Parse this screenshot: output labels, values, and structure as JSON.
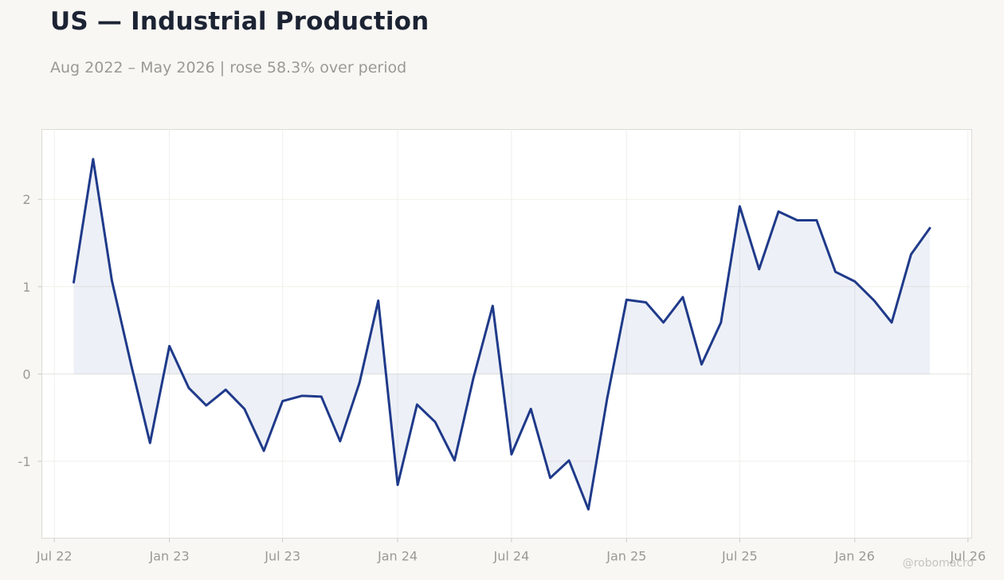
{
  "header": {
    "title": "US — Industrial Production",
    "subtitle": "Aug 2022 – May 2026 | rose 58.3% over period"
  },
  "watermark": "@robomacro",
  "colors": {
    "line": "#1f3a8a",
    "fill": "#1f3a8a",
    "background": "#f8f7f4",
    "plot_background": "#ffffff",
    "grid": "#efefec",
    "tick_text": "#9a9a94",
    "title_text": "#1c2333"
  },
  "chart_data": {
    "type": "area",
    "title": "US — Industrial Production",
    "subtitle": "Aug 2022 – May 2026 | rose 58.3% over period",
    "x_tick_labels": [
      "Jul 22",
      "Jan 23",
      "Jul 23",
      "Jan 24",
      "Jul 24",
      "Jan 25",
      "Jul 25",
      "Jan 26",
      "Jul 26"
    ],
    "x_tick_dates": [
      "2022-07-01",
      "2023-01-01",
      "2023-07-01",
      "2024-01-01",
      "2024-07-01",
      "2025-01-01",
      "2025-07-01",
      "2026-01-01",
      "2026-07-01"
    ],
    "y_ticks": [
      -1,
      0,
      1,
      2
    ],
    "y_tick_labels": [
      "-1",
      "0",
      "1",
      "2"
    ],
    "xlim": [
      "2022-06-11",
      "2026-07-07"
    ],
    "ylim": [
      -1.88,
      2.8
    ],
    "grid": true,
    "series": [
      {
        "x": [
          "2022-08-01",
          "2022-09-01",
          "2022-10-01",
          "2022-11-01",
          "2022-12-01",
          "2023-01-01",
          "2023-02-01",
          "2023-03-01",
          "2023-04-01",
          "2023-05-01",
          "2023-06-01",
          "2023-07-01",
          "2023-08-01",
          "2023-09-01",
          "2023-10-01",
          "2023-11-01",
          "2023-12-01",
          "2024-01-01",
          "2024-02-01",
          "2024-03-01",
          "2024-04-01",
          "2024-05-01",
          "2024-06-01",
          "2024-07-01",
          "2024-08-01",
          "2024-09-01",
          "2024-10-01",
          "2024-11-01",
          "2024-12-01",
          "2025-01-01",
          "2025-02-01",
          "2025-03-01",
          "2025-04-01",
          "2025-05-01",
          "2025-06-01",
          "2025-07-01",
          "2025-08-01",
          "2025-09-01",
          "2025-10-01",
          "2025-11-01",
          "2025-12-01",
          "2026-01-01",
          "2026-02-01",
          "2026-03-01",
          "2026-04-01",
          "2026-05-01"
        ],
        "values": [
          1.05,
          2.46,
          1.07,
          0.1,
          -0.79,
          0.32,
          -0.16,
          -0.36,
          -0.18,
          -0.4,
          -0.88,
          -0.31,
          -0.25,
          -0.26,
          -0.77,
          -0.1,
          0.84,
          -1.27,
          -0.35,
          -0.55,
          -0.99,
          -0.05,
          0.78,
          -0.92,
          -0.4,
          -1.19,
          -0.99,
          -1.55,
          -0.28,
          0.85,
          0.82,
          0.59,
          0.88,
          0.11,
          0.59,
          1.92,
          1.2,
          1.86,
          1.76,
          1.76,
          1.17,
          1.06,
          0.84,
          0.59,
          1.37,
          1.67
        ]
      }
    ]
  }
}
